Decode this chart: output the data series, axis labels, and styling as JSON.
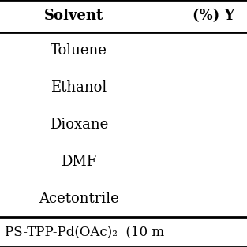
{
  "headers": [
    "Solvent",
    "(%) Y"
  ],
  "rows": [
    [
      "Toluene",
      ""
    ],
    [
      "Ethanol",
      ""
    ],
    [
      "Dioxane",
      ""
    ],
    [
      "DMF",
      ""
    ],
    [
      "Acetontrile",
      ""
    ]
  ],
  "footer_text": "PS-TPP-Pd(OAc)₂  (10 m",
  "background_color": "#ffffff",
  "line_color": "#000000",
  "header_fontsize": 13,
  "row_fontsize": 13,
  "footer_fontsize": 12,
  "figsize": [
    3.13,
    3.13
  ],
  "dpi": 100
}
